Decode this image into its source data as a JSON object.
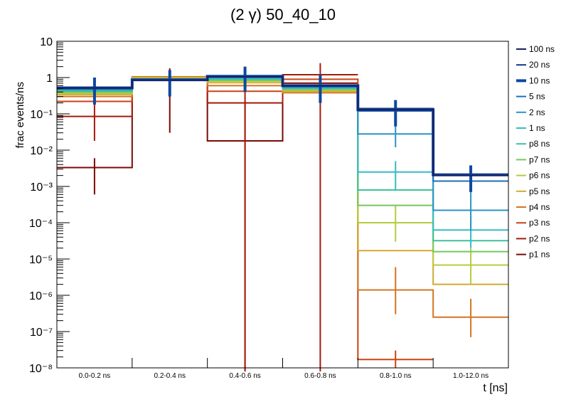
{
  "chart_data": {
    "type": "line",
    "title": "(2 γ) 50_40_10",
    "xlabel": "t [ns]",
    "ylabel": "frac events/ns",
    "yscale": "log",
    "ylim": [
      1e-08,
      10
    ],
    "categories": [
      "0.0-0.2 ns",
      "0.2-0.4 ns",
      "0.4-0.6 ns",
      "0.6-0.8 ns",
      "0.8-1.0 ns",
      "1.0-12.0 ns"
    ],
    "y_ticks": [
      {
        "exp": 1,
        "label": "10"
      },
      {
        "exp": 0,
        "label": "1"
      },
      {
        "exp": -1,
        "label": "10⁻¹"
      },
      {
        "exp": -2,
        "label": "10⁻²"
      },
      {
        "exp": -3,
        "label": "10⁻³"
      },
      {
        "exp": -4,
        "label": "10⁻⁴"
      },
      {
        "exp": -5,
        "label": "10⁻⁵"
      },
      {
        "exp": -6,
        "label": "10⁻⁶"
      },
      {
        "exp": -7,
        "label": "10⁻⁷"
      },
      {
        "exp": -8,
        "label": "10⁻⁸"
      }
    ],
    "legend_position": "right",
    "series": [
      {
        "name": "100 ns",
        "color": "#1a1f64",
        "width": 2,
        "values": [
          0.52,
          0.85,
          1.05,
          0.6,
          0.13,
          0.002
        ],
        "errors": [
          null,
          null,
          null,
          null,
          null,
          null
        ]
      },
      {
        "name": "20 ns",
        "color": "#103a8c",
        "width": 2,
        "values": [
          0.5,
          0.85,
          1.05,
          0.58,
          0.14,
          0.0021
        ],
        "errors": [
          null,
          null,
          null,
          null,
          null,
          null
        ]
      },
      {
        "name": "10 ns",
        "color": "#0d48a1",
        "width": 4,
        "values": [
          0.52,
          0.87,
          1.08,
          0.6,
          0.13,
          0.0021
        ],
        "errors": [
          [
            0.18,
            1.0
          ],
          [
            0.3,
            1.6
          ],
          [
            0.4,
            2.0
          ],
          [
            0.2,
            1.2
          ],
          [
            0.045,
            0.24
          ],
          [
            0.0007,
            0.0038
          ]
        ]
      },
      {
        "name": "5 ns",
        "color": "#1f6eb8",
        "width": 2,
        "values": [
          0.5,
          0.86,
          1.04,
          0.57,
          0.12,
          0.0014
        ],
        "errors": [
          null,
          null,
          null,
          null,
          null,
          null
        ]
      },
      {
        "name": "2 ns",
        "color": "#2b93c4",
        "width": 2,
        "values": [
          0.47,
          0.85,
          1.0,
          0.55,
          0.028,
          0.00022
        ],
        "errors": [
          null,
          null,
          null,
          null,
          [
            0.012,
            0.06
          ],
          [
            6e-05,
            0.0007
          ]
        ]
      },
      {
        "name": "1 ns",
        "color": "#33bcc6",
        "width": 2,
        "values": [
          0.45,
          0.9,
          0.95,
          0.52,
          0.0025,
          6.3e-05
        ],
        "errors": [
          null,
          null,
          null,
          null,
          [
            0.0008,
            0.005
          ],
          [
            2e-05,
            0.00015
          ]
        ]
      },
      {
        "name": "p8 ns",
        "color": "#3ec29a",
        "width": 2,
        "values": [
          0.42,
          0.9,
          0.9,
          0.5,
          0.0008,
          3.2e-05
        ],
        "errors": [
          null,
          null,
          null,
          null,
          null,
          null
        ]
      },
      {
        "name": "p7 ns",
        "color": "#74c85d",
        "width": 2,
        "values": [
          0.4,
          0.92,
          0.85,
          0.48,
          0.0003,
          1.6e-05
        ],
        "errors": [
          null,
          null,
          null,
          null,
          null,
          null
        ]
      },
      {
        "name": "p6 ns",
        "color": "#b7cc3c",
        "width": 2,
        "values": [
          0.37,
          0.95,
          0.8,
          0.45,
          0.0001,
          6.8e-06
        ],
        "errors": [
          null,
          null,
          null,
          null,
          [
            3e-05,
            0.0003
          ],
          [
            2e-06,
            2e-05
          ]
        ]
      },
      {
        "name": "p5 ns",
        "color": "#d1aa30",
        "width": 2,
        "values": [
          0.34,
          1.0,
          0.72,
          0.42,
          1.7e-05,
          2e-06
        ],
        "errors": [
          null,
          null,
          null,
          null,
          null,
          null
        ]
      },
      {
        "name": "p4 ns",
        "color": "#d47520",
        "width": 2,
        "values": [
          0.3,
          1.05,
          0.6,
          0.38,
          1.4e-06,
          2.5e-07
        ],
        "errors": [
          null,
          null,
          null,
          null,
          [
            3e-07,
            6e-06
          ],
          [
            7e-08,
            8e-07
          ]
        ]
      },
      {
        "name": "p3 ns",
        "color": "#c84413",
        "width": 2,
        "values": [
          0.22,
          1.0,
          0.42,
          0.9,
          1.7e-08,
          null
        ],
        "errors": [
          null,
          null,
          null,
          null,
          [
            1e-08,
            3e-08
          ],
          null
        ]
      },
      {
        "name": "p2 ns",
        "color": "#a41b0b",
        "width": 2,
        "values": [
          0.085,
          0.95,
          0.2,
          1.2,
          null,
          null
        ],
        "errors": [
          [
            0.018,
            0.3
          ],
          null,
          [
            8e-09,
            0.9
          ],
          [
            8e-09,
            2.5
          ],
          null,
          null
        ]
      },
      {
        "name": "p1 ns",
        "color": "#7a0a06",
        "width": 2,
        "values": [
          0.0033,
          0.9,
          0.018,
          0.7,
          null,
          null
        ],
        "errors": [
          [
            0.0006,
            0.006
          ],
          [
            0.03,
            1.8
          ],
          [
            8e-09,
            0.2
          ],
          null,
          null,
          null
        ]
      }
    ]
  }
}
